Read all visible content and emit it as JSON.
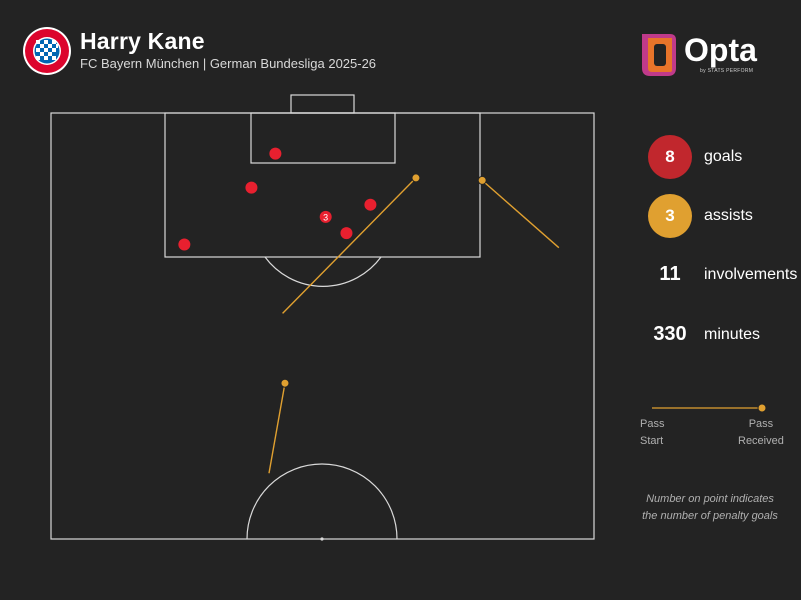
{
  "header": {
    "title": "Harry Kane",
    "subtitle": "FC Bayern München | German Bundesliga 2025-26",
    "badge_text": "FC BAYERN MÜNCHEN",
    "logo_word": "Opta",
    "logo_sub": "by STATS PERFORM"
  },
  "colors": {
    "background": "#232323",
    "pitch_lines": "#d9d9d9",
    "goal": "#e8202f",
    "assist": "#e0a030",
    "goal_circle": "#c1272d",
    "assist_circle": "#e0a030"
  },
  "stats": {
    "goals": {
      "value": "8",
      "label": "goals"
    },
    "assists": {
      "value": "3",
      "label": "assists"
    },
    "involvements": {
      "value": "11",
      "label": "involvements"
    },
    "minutes": {
      "value": "330",
      "label": "minutes"
    }
  },
  "legend": {
    "pass_start": "Pass\nStart",
    "pass_received": "Pass\nReceived"
  },
  "note": "Number on point indicates\nthe number of penalty goals",
  "chart_data": {
    "type": "scatter",
    "title": "Harry Kane",
    "pitch": "half, attacking goal at top",
    "axes": "x = metres from left touchline (0-68), y = metres from goal line (0-52.5)",
    "goals": [
      {
        "x": 28.1,
        "y": 5.0,
        "penalty_goals": 0
      },
      {
        "x": 25.1,
        "y": 9.2,
        "penalty_goals": 0
      },
      {
        "x": 34.4,
        "y": 12.8,
        "penalty_goals": 3
      },
      {
        "x": 40.0,
        "y": 11.3,
        "penalty_goals": 0
      },
      {
        "x": 37.0,
        "y": 14.8,
        "penalty_goals": 0
      },
      {
        "x": 16.7,
        "y": 16.2,
        "penalty_goals": 0
      }
    ],
    "assists": [
      {
        "start": {
          "x": 29.0,
          "y": 24.7
        },
        "received": {
          "x": 45.7,
          "y": 8.0
        }
      },
      {
        "start": {
          "x": 63.6,
          "y": 16.6
        },
        "received": {
          "x": 54.0,
          "y": 8.3
        }
      },
      {
        "start": {
          "x": 27.3,
          "y": 44.4
        },
        "received": {
          "x": 29.3,
          "y": 33.3
        }
      }
    ]
  }
}
